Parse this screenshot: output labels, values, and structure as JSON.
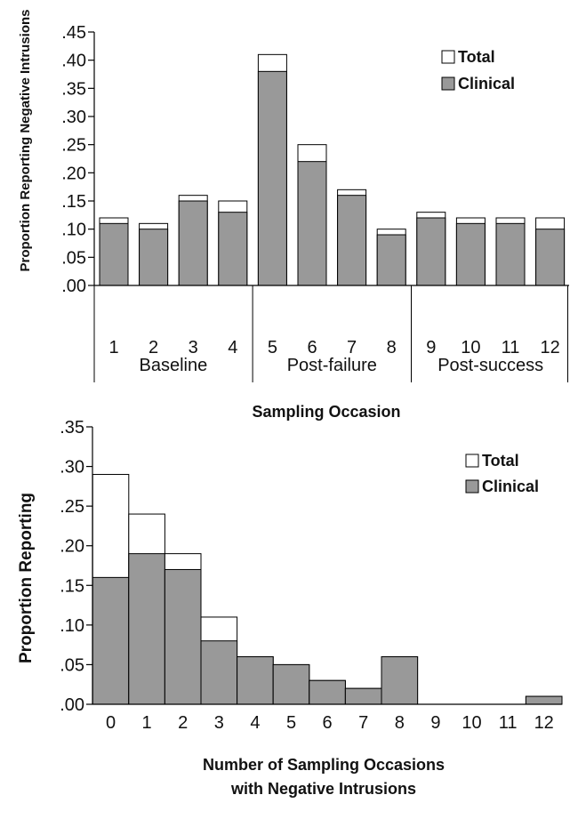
{
  "chart_data": [
    {
      "type": "bar",
      "ylabel": "Proportion Reporting Negative Intrusions",
      "xlabel": "Sampling Occasion",
      "ylim": [
        0,
        0.45
      ],
      "y_ticks": [
        ".00",
        ".05",
        ".10",
        ".15",
        ".20",
        ".25",
        ".30",
        ".35",
        ".40",
        ".45"
      ],
      "categories": [
        "1",
        "2",
        "3",
        "4",
        "5",
        "6",
        "7",
        "8",
        "9",
        "10",
        "11",
        "12"
      ],
      "groups": [
        {
          "label": "Baseline",
          "from": 0,
          "to": 3
        },
        {
          "label": "Post-failure",
          "from": 4,
          "to": 7
        },
        {
          "label": "Post-success",
          "from": 8,
          "to": 11
        }
      ],
      "series": [
        {
          "name": "Total",
          "color": "#ffffff",
          "values": [
            0.12,
            0.11,
            0.16,
            0.15,
            0.41,
            0.25,
            0.17,
            0.1,
            0.13,
            0.12,
            0.12,
            0.12
          ]
        },
        {
          "name": "Clinical",
          "color": "#999999",
          "values": [
            0.11,
            0.1,
            0.15,
            0.13,
            0.38,
            0.22,
            0.16,
            0.09,
            0.12,
            0.11,
            0.11,
            0.1
          ]
        }
      ],
      "legend": "top-right",
      "grid": false
    },
    {
      "type": "bar",
      "ylabel": "Proportion Reporting",
      "xlabel_line1": "Number of Sampling Occasions",
      "xlabel_line2": "with Negative Intrusions",
      "ylim": [
        0,
        0.35
      ],
      "y_ticks": [
        ".00",
        ".05",
        ".10",
        ".15",
        ".20",
        ".25",
        ".30",
        ".35"
      ],
      "categories": [
        "0",
        "1",
        "2",
        "3",
        "4",
        "5",
        "6",
        "7",
        "8",
        "9",
        "10",
        "11",
        "12"
      ],
      "series": [
        {
          "name": "Total",
          "color": "#ffffff",
          "values": [
            0.29,
            0.24,
            0.19,
            0.11,
            0.06,
            0.05,
            0.03,
            0.02,
            0.06,
            0.0,
            0.0,
            0.0,
            0.01
          ]
        },
        {
          "name": "Clinical",
          "color": "#999999",
          "values": [
            0.16,
            0.19,
            0.17,
            0.08,
            0.06,
            0.05,
            0.03,
            0.02,
            0.06,
            0.0,
            0.0,
            0.0,
            0.01
          ]
        }
      ],
      "legend": "top-right",
      "grid": false
    }
  ]
}
